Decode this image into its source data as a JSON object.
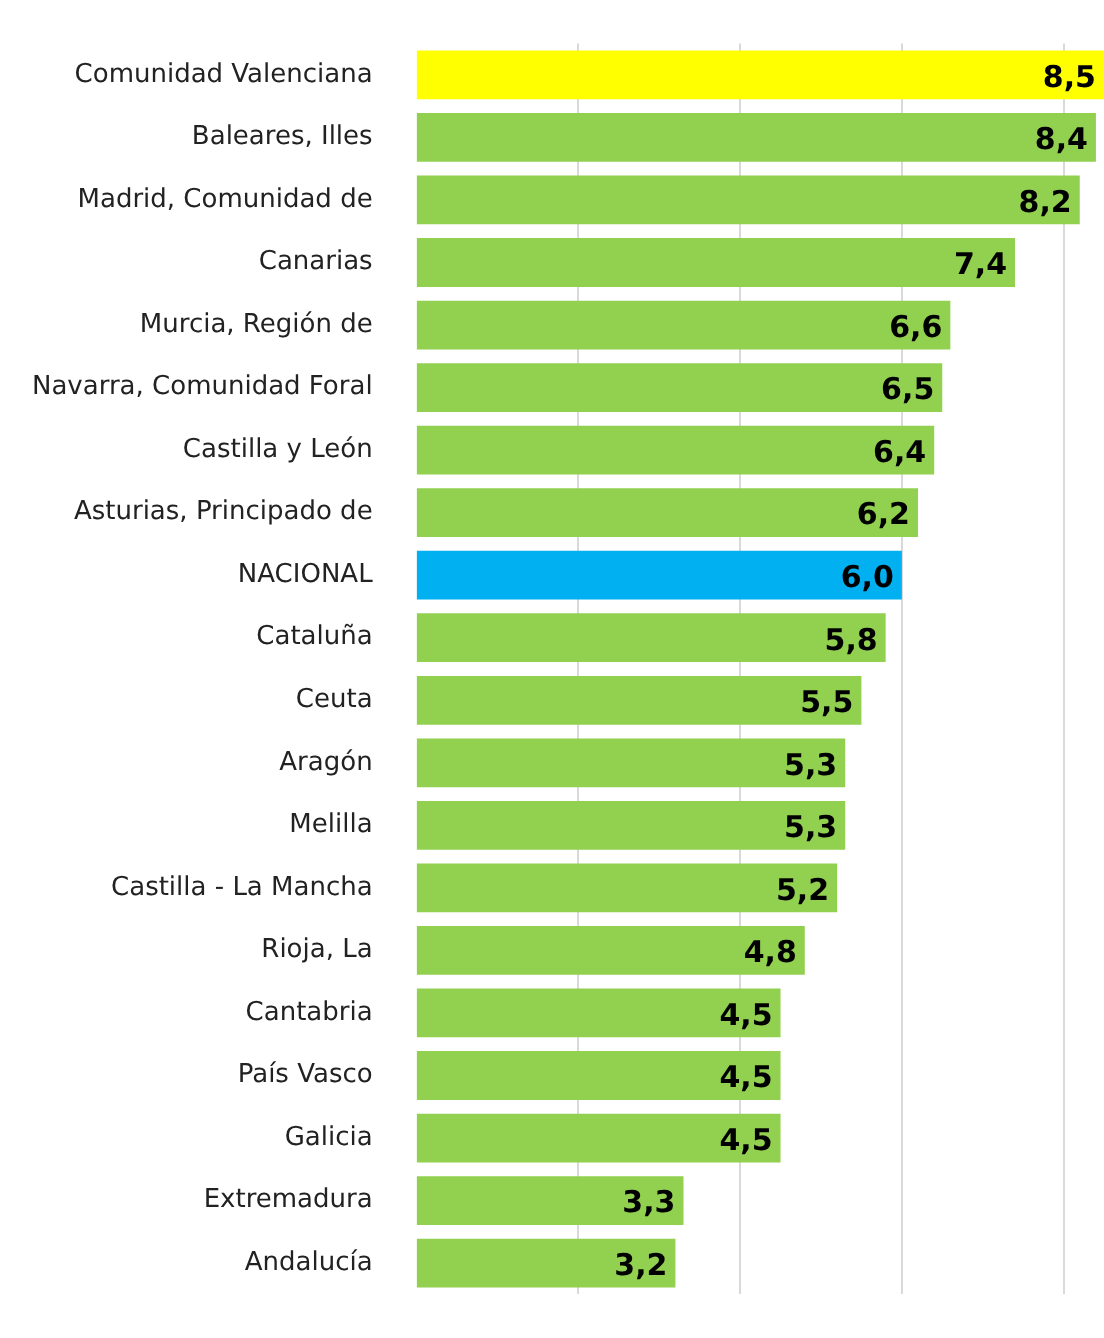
{
  "chart_data": {
    "type": "bar",
    "orientation": "horizontal",
    "categories": [
      "Comunidad Valenciana",
      "Baleares, Illes",
      "Madrid, Comunidad de",
      "Canarias",
      "Murcia, Región de",
      "Navarra, Comunidad Foral",
      "Castilla y León",
      "Asturias, Principado de",
      "NACIONAL",
      "Cataluña",
      "Ceuta",
      "Aragón",
      "Melilla",
      "Castilla - La Mancha",
      "Rioja, La",
      "Cantabria",
      "País Vasco",
      "Galicia",
      "Extremadura",
      "Andalucía"
    ],
    "values": [
      8.5,
      8.4,
      8.2,
      7.4,
      6.6,
      6.5,
      6.4,
      6.2,
      6.0,
      5.8,
      5.5,
      5.3,
      5.3,
      5.2,
      4.8,
      4.5,
      4.5,
      4.5,
      3.3,
      3.2
    ],
    "value_labels": [
      "8,5",
      "8,4",
      "8,2",
      "7,4",
      "6,6",
      "6,5",
      "6,4",
      "6,2",
      "6,0",
      "5,8",
      "5,5",
      "5,3",
      "5,3",
      "5,2",
      "4,8",
      "4,5",
      "4,5",
      "4,5",
      "3,3",
      "3,2"
    ],
    "colors": [
      "#ffff00",
      "#92d050",
      "#92d050",
      "#92d050",
      "#92d050",
      "#92d050",
      "#92d050",
      "#92d050",
      "#00b0f0",
      "#92d050",
      "#92d050",
      "#92d050",
      "#92d050",
      "#92d050",
      "#92d050",
      "#92d050",
      "#92d050",
      "#92d050",
      "#92d050",
      "#92d050"
    ],
    "xlim": [
      0,
      8.5
    ],
    "xticks": [
      {
        "value": 2,
        "label": null
      },
      {
        "value": 4,
        "label": null
      },
      {
        "value": 6,
        "label": null
      },
      {
        "value": 8,
        "label": null
      }
    ],
    "tick_labels": "y",
    "grid": "x",
    "legend": false
  }
}
